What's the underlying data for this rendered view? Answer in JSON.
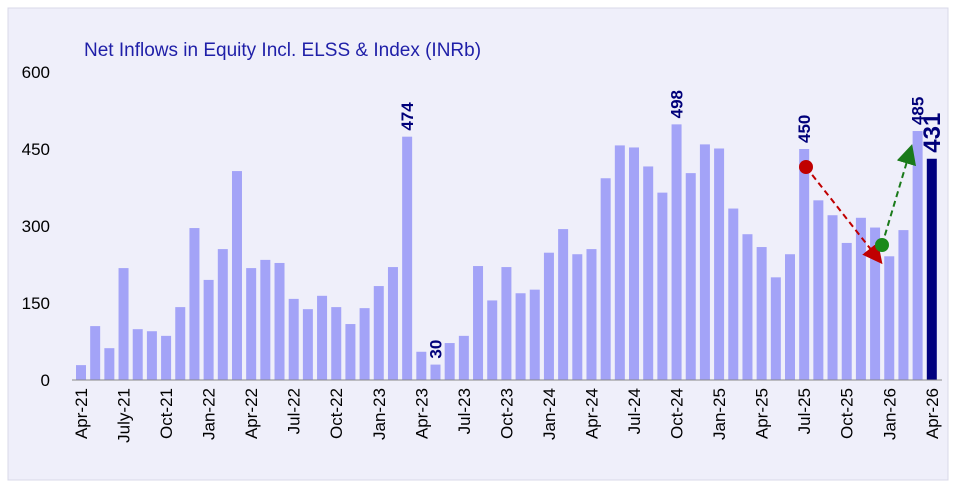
{
  "chart_data": {
    "type": "bar",
    "title": "Net Inflows in Equity Incl. ELSS & Index (INRb)",
    "categories": [
      "Apr-21",
      null,
      null,
      "July-21",
      null,
      null,
      "Oct-21",
      null,
      null,
      "Jan-22",
      null,
      null,
      "Apr-22",
      null,
      null,
      "Jul-22",
      null,
      null,
      "Oct-22",
      null,
      null,
      "Jan-23",
      null,
      null,
      "Apr-23",
      null,
      null,
      "Jul-23",
      null,
      null,
      "Oct-23",
      null,
      null,
      "Jan-24",
      null,
      null,
      "Apr-24",
      null,
      null,
      "Jul-24",
      null,
      null,
      "Oct-24",
      null,
      null,
      "Jan-25",
      null,
      null,
      "Apr-25",
      null,
      null,
      "Jul-25",
      null,
      null,
      "Oct-25",
      null,
      null,
      "Jan-26",
      null,
      null,
      "Apr-26"
    ],
    "values": [
      29,
      105,
      62,
      218,
      99,
      95,
      86,
      142,
      296,
      195,
      255,
      407,
      218,
      234,
      228,
      158,
      138,
      164,
      142,
      109,
      140,
      183,
      220,
      474,
      55,
      30,
      72,
      86,
      222,
      155,
      220,
      169,
      176,
      248,
      294,
      245,
      255,
      393,
      457,
      453,
      416,
      365,
      498,
      403,
      459,
      451,
      334,
      284,
      259,
      200,
      245,
      450,
      350,
      321,
      267,
      316,
      297,
      241,
      292,
      485,
      431
    ],
    "value_labels": [
      null,
      null,
      null,
      null,
      null,
      null,
      null,
      null,
      null,
      null,
      null,
      null,
      null,
      null,
      null,
      null,
      null,
      null,
      null,
      null,
      null,
      null,
      null,
      "474",
      null,
      "30",
      null,
      null,
      null,
      null,
      null,
      null,
      null,
      null,
      null,
      null,
      null,
      null,
      null,
      null,
      null,
      null,
      "498",
      null,
      null,
      null,
      null,
      null,
      null,
      null,
      null,
      "450",
      null,
      null,
      null,
      null,
      null,
      null,
      null,
      "485",
      "431"
    ],
    "color": "#a3a3f7",
    "highlight_color": "#00007f",
    "highlight_index": 60,
    "ylim": [
      0,
      600
    ],
    "yticks": [
      0,
      150,
      300,
      450,
      600
    ],
    "grid": false
  }
}
